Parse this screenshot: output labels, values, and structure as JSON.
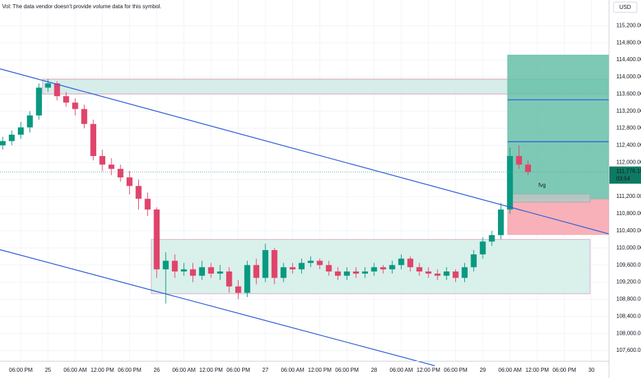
{
  "chart_data": {
    "type": "candlestick",
    "note_text": "Vol: The data vendor doesn't provide volume data for this symbol.",
    "currency": "USD",
    "xlim": [
      -10.6,
      123.8
    ],
    "ylim": [
      107360,
      115800
    ],
    "grid": true,
    "up_color": "#089981",
    "down_color": "#e0446a",
    "xticks": [
      {
        "value": -6,
        "label": "06:00 PM"
      },
      {
        "value": 0,
        "label": "25"
      },
      {
        "value": 6,
        "label": "06:00 AM"
      },
      {
        "value": 12,
        "label": "12:00 PM"
      },
      {
        "value": 18,
        "label": "06:00 PM"
      },
      {
        "value": 24,
        "label": "26"
      },
      {
        "value": 30,
        "label": "06:00 AM"
      },
      {
        "value": 36,
        "label": "12:00 PM"
      },
      {
        "value": 42,
        "label": "06:00 PM"
      },
      {
        "value": 48,
        "label": "27"
      },
      {
        "value": 54,
        "label": "06:00 AM"
      },
      {
        "value": 60,
        "label": "12:00 PM"
      },
      {
        "value": 66,
        "label": "06:00 PM"
      },
      {
        "value": 72,
        "label": "28"
      },
      {
        "value": 78,
        "label": "06:00 AM"
      },
      {
        "value": 84,
        "label": "12:00 PM"
      },
      {
        "value": 90,
        "label": "06:00 PM"
      },
      {
        "value": 96,
        "label": "29"
      },
      {
        "value": 102,
        "label": "06:00 AM"
      },
      {
        "value": 108,
        "label": "12:00 PM"
      },
      {
        "value": 114,
        "label": "06:00 PM"
      },
      {
        "value": 120,
        "label": "30"
      }
    ],
    "yticks": [
      {
        "value": 115200,
        "label": "115,200.00"
      },
      {
        "value": 114800,
        "label": "114,800.00"
      },
      {
        "value": 114400,
        "label": "114,400.00"
      },
      {
        "value": 114000,
        "label": "114,000.00"
      },
      {
        "value": 113600,
        "label": "113,600.00"
      },
      {
        "value": 113200,
        "label": "113,200.00"
      },
      {
        "value": 112800,
        "label": "112,800.00"
      },
      {
        "value": 112400,
        "label": "112,400.00"
      },
      {
        "value": 112000,
        "label": "112,000.00"
      },
      {
        "value": 111600,
        "label": "111,600.00"
      },
      {
        "value": 111200,
        "label": "111,200.00"
      },
      {
        "value": 110800,
        "label": "110,800.00"
      },
      {
        "value": 110400,
        "label": "110,400.00"
      },
      {
        "value": 110000,
        "label": "110,000.00"
      },
      {
        "value": 109600,
        "label": "109,600.00"
      },
      {
        "value": 109200,
        "label": "109,200.00"
      },
      {
        "value": 108800,
        "label": "108,800.00"
      },
      {
        "value": 108400,
        "label": "108,400.00"
      },
      {
        "value": 108000,
        "label": "108,000.00"
      },
      {
        "value": 107600,
        "label": "107,600.00"
      }
    ],
    "x": [
      -10,
      -8,
      -6,
      -4,
      -2,
      0,
      2,
      4,
      6,
      8,
      10,
      12,
      14,
      16,
      18,
      20,
      22,
      24,
      26,
      28,
      30,
      32,
      34,
      36,
      38,
      40,
      42,
      44,
      46,
      48,
      50,
      52,
      54,
      56,
      58,
      60,
      62,
      64,
      66,
      68,
      70,
      72,
      74,
      76,
      78,
      80,
      82,
      84,
      86,
      88,
      90,
      92,
      94,
      96,
      98,
      100,
      102,
      104,
      106
    ],
    "open": [
      112400,
      112500,
      112650,
      112820,
      113100,
      113750,
      113850,
      113550,
      113400,
      113250,
      112900,
      112150,
      111950,
      111850,
      111650,
      111450,
      111150,
      110900,
      109500,
      109700,
      109450,
      109500,
      109350,
      109550,
      109400,
      109450,
      109100,
      108950,
      109600,
      109300,
      109950,
      109300,
      109550,
      109500,
      109650,
      109700,
      109600,
      109450,
      109350,
      109450,
      109400,
      109450,
      109550,
      109500,
      109600,
      109750,
      109550,
      109450,
      109400,
      109350,
      109450,
      109300,
      109550,
      109850,
      110150,
      110300,
      110900,
      112150,
      111950
    ],
    "high": [
      112600,
      112750,
      112950,
      113200,
      113850,
      113950,
      113900,
      113650,
      113500,
      113350,
      113000,
      112300,
      112100,
      111950,
      111800,
      111600,
      111300,
      110950,
      109900,
      109850,
      109650,
      109650,
      109700,
      109650,
      109600,
      109550,
      109250,
      109700,
      109750,
      110100,
      110000,
      109650,
      109650,
      109750,
      109800,
      109750,
      109700,
      109550,
      109550,
      109550,
      109550,
      109650,
      109600,
      109700,
      109850,
      109800,
      109650,
      109550,
      109500,
      109550,
      109500,
      109650,
      109950,
      110250,
      110400,
      111050,
      112350,
      112400,
      112050
    ],
    "low": [
      112300,
      112400,
      112550,
      112700,
      113000,
      113650,
      113450,
      113300,
      113100,
      112800,
      112050,
      111800,
      111700,
      111550,
      111250,
      110900,
      110750,
      109300,
      108700,
      109300,
      109350,
      109200,
      109250,
      109300,
      109250,
      108950,
      108800,
      108850,
      109150,
      109200,
      109150,
      109200,
      109400,
      109400,
      109550,
      109500,
      109350,
      109250,
      109250,
      109300,
      109300,
      109350,
      109400,
      109400,
      109500,
      109450,
      109350,
      109300,
      109250,
      109250,
      109200,
      109200,
      109450,
      109750,
      110050,
      110200,
      110800,
      111850,
      111700
    ],
    "close": [
      112500,
      112650,
      112820,
      113100,
      113750,
      113850,
      113550,
      113400,
      113250,
      112900,
      112150,
      111950,
      111850,
      111650,
      111450,
      111150,
      110900,
      109500,
      109700,
      109450,
      109500,
      109350,
      109550,
      109400,
      109450,
      109100,
      108950,
      109600,
      109300,
      109950,
      109300,
      109550,
      109500,
      109650,
      109700,
      109600,
      109450,
      109350,
      109450,
      109400,
      109450,
      109550,
      109500,
      109600,
      109750,
      109550,
      109450,
      109400,
      109350,
      109450,
      109300,
      109550,
      109850,
      110150,
      110300,
      110900,
      112150,
      111950,
      111776.15
    ],
    "last_price": {
      "value": 111776.15,
      "label": "111,776.15"
    },
    "countdown": "03:54",
    "zones": [
      {
        "x": [
          -1.2,
          123.8
        ],
        "y": [
          113950,
          113600
        ],
        "color": "#cfeae6",
        "border": "#e0a0b8"
      },
      {
        "x": [
          22.8,
          119.7
        ],
        "y": [
          110200,
          108930
        ],
        "color": "#d4ede8",
        "border": "#d8b0c8"
      },
      {
        "x": [
          101.5,
          123.8
        ],
        "y": [
          114510,
          111135
        ],
        "color": "#66bfa8",
        "border": "#66bfa8"
      },
      {
        "x": [
          101.5,
          123.8
        ],
        "y": [
          111135,
          110315
        ],
        "color": "#f7a3ad",
        "border": "#f7a3ad"
      },
      {
        "x": [
          101.5,
          119.7
        ],
        "y": [
          111260,
          111070
        ],
        "color": "#b8c8c4",
        "border": "#a0b0ae"
      }
    ],
    "lines": [
      {
        "x": [
          -10.6,
          123.8
        ],
        "y": [
          114190,
          110330
        ],
        "color": "#2f5fd8"
      },
      {
        "x": [
          -10.6,
          85.4
        ],
        "y": [
          109960,
          107245
        ],
        "color": "#2f5fd8"
      },
      {
        "x": [
          101.5,
          123.8
        ],
        "y": [
          113465,
          113465
        ],
        "color": "#2f5fd8"
      },
      {
        "x": [
          101.5,
          123.8
        ],
        "y": [
          112485,
          112485
        ],
        "color": "#2f5fd8"
      }
    ],
    "annotation": {
      "text": "fvg",
      "x": 108.3,
      "y": 111460
    }
  }
}
